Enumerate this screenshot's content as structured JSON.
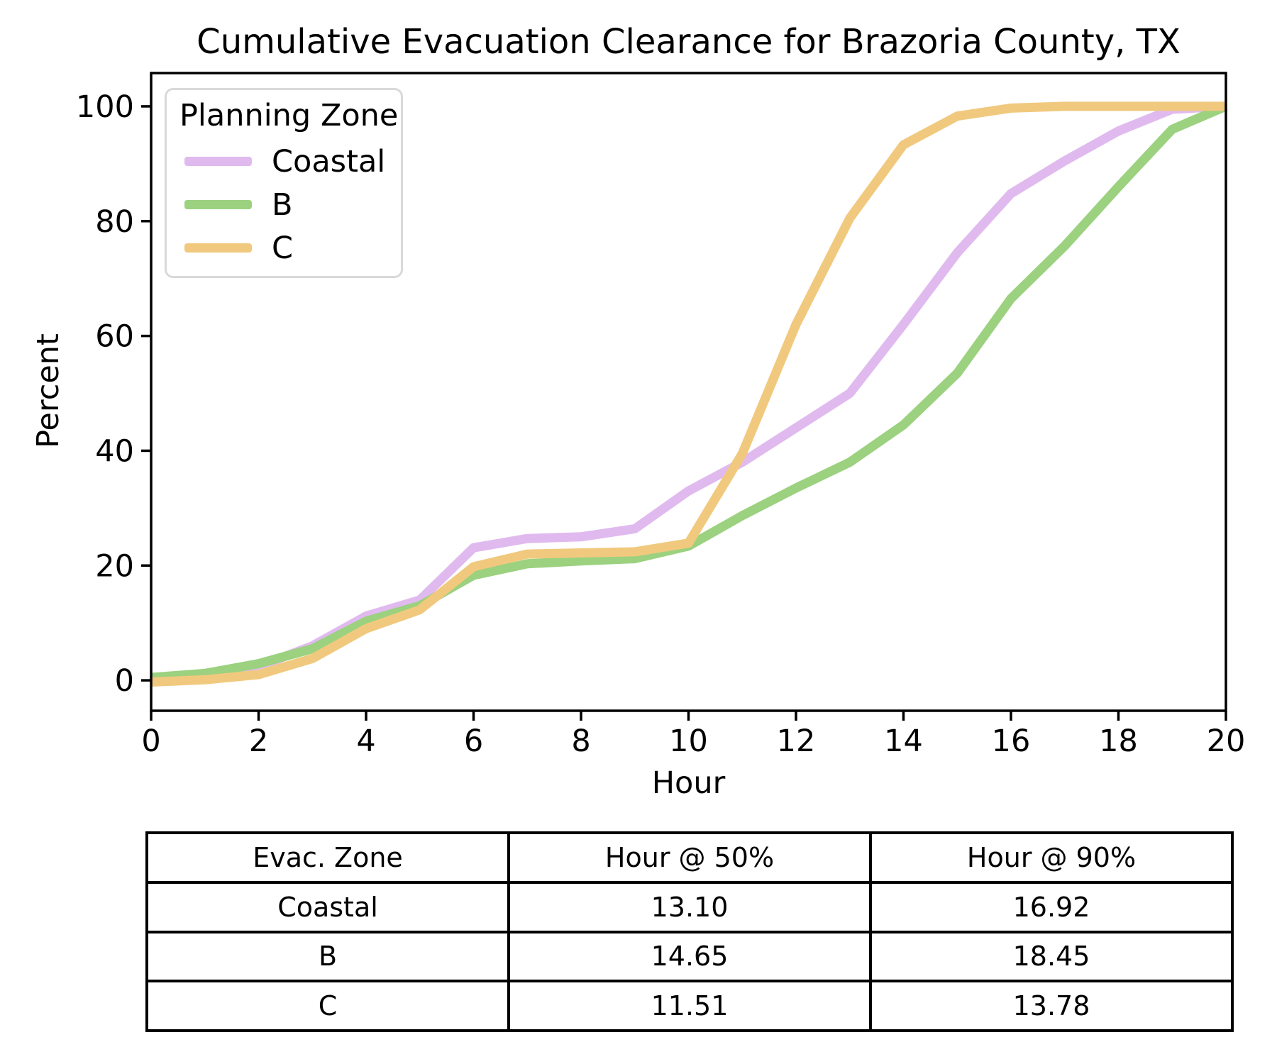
{
  "title": "Cumulative Evacuation Clearance for Brazoria County, TX",
  "chart_data": {
    "type": "line",
    "title": "Cumulative Evacuation Clearance for Brazoria County, TX",
    "xlabel": "Hour",
    "ylabel": "Percent",
    "xlim": [
      0,
      20
    ],
    "ylim": [
      -5.3,
      105.8
    ],
    "x_ticks": [
      0,
      2,
      4,
      6,
      8,
      10,
      12,
      14,
      16,
      18,
      20
    ],
    "y_ticks": [
      0,
      20,
      40,
      60,
      80,
      100
    ],
    "grid": false,
    "legend_position": "upper left",
    "legend_title": "Planning Zone",
    "x": [
      0,
      1,
      2,
      3,
      4,
      5,
      6,
      7,
      8,
      9,
      10,
      11,
      12,
      13,
      14,
      15,
      16,
      17,
      18,
      19,
      20
    ],
    "series": [
      {
        "name": "Coastal",
        "color": "#E0BAEF",
        "values": [
          0.4,
          0.9,
          2.4,
          6.0,
          11.2,
          14.0,
          23.1,
          24.7,
          25.0,
          26.4,
          33.0,
          38.0,
          44.0,
          50.0,
          62.0,
          74.5,
          84.8,
          90.5,
          95.7,
          99.5,
          100
        ]
      },
      {
        "name": "B",
        "color": "#9BD17F",
        "values": [
          0.5,
          1.2,
          2.9,
          5.5,
          10.3,
          13.0,
          18.3,
          20.3,
          20.8,
          21.2,
          23.4,
          28.7,
          33.5,
          38.0,
          44.5,
          53.5,
          66.5,
          75.7,
          86.0,
          96.0,
          100
        ]
      },
      {
        "name": "C",
        "color": "#F1C97E",
        "values": [
          -0.3,
          0.1,
          1.0,
          3.8,
          9.0,
          12.3,
          19.8,
          22.0,
          22.2,
          22.4,
          23.9,
          39.5,
          62.0,
          80.5,
          93.3,
          98.3,
          99.7,
          100,
          100,
          100,
          100
        ]
      }
    ]
  },
  "table": {
    "headers": [
      "Evac. Zone",
      "Hour @ 50%",
      "Hour @ 90%"
    ],
    "rows": [
      [
        "Coastal",
        "13.10",
        "16.92"
      ],
      [
        "B",
        "14.65",
        "18.45"
      ],
      [
        "C",
        "11.51",
        "13.78"
      ]
    ]
  },
  "style": {
    "axis_color": "#000000",
    "legend_border_color": "#d9d9d9"
  }
}
